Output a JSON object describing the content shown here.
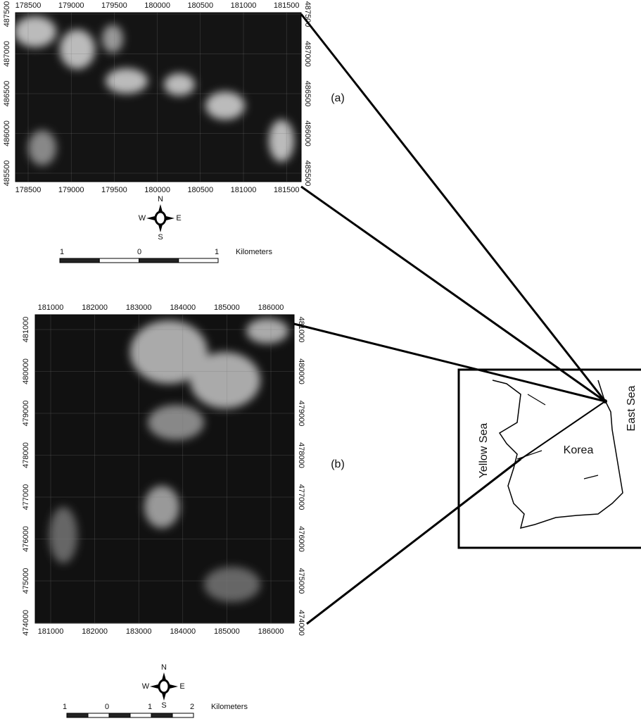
{
  "panel_a": {
    "label": "(a)",
    "x_ticks": [
      178500,
      179000,
      179500,
      180000,
      180500,
      181000,
      181500
    ],
    "y_ticks": [
      487500,
      487000,
      486500,
      486000,
      485500
    ],
    "compass": {
      "n": "N",
      "w": "W",
      "e": "E",
      "s": "S"
    },
    "scale": {
      "labels": [
        "1",
        "0",
        "1"
      ],
      "unit": "Kilometers"
    }
  },
  "panel_b": {
    "label": "(b)",
    "x_ticks": [
      181000,
      182000,
      183000,
      184000,
      185000,
      186000
    ],
    "y_ticks": [
      481000,
      480000,
      479000,
      478000,
      477000,
      476000,
      475000,
      474000
    ],
    "compass": {
      "n": "N",
      "w": "W",
      "e": "E",
      "s": "S"
    },
    "scale": {
      "labels": [
        "1",
        "0",
        "1",
        "2"
      ],
      "unit": "Kilometers"
    }
  },
  "inset": {
    "west_sea": "Yellow Sea",
    "country": "Korea",
    "east_sea": "East Sea"
  }
}
